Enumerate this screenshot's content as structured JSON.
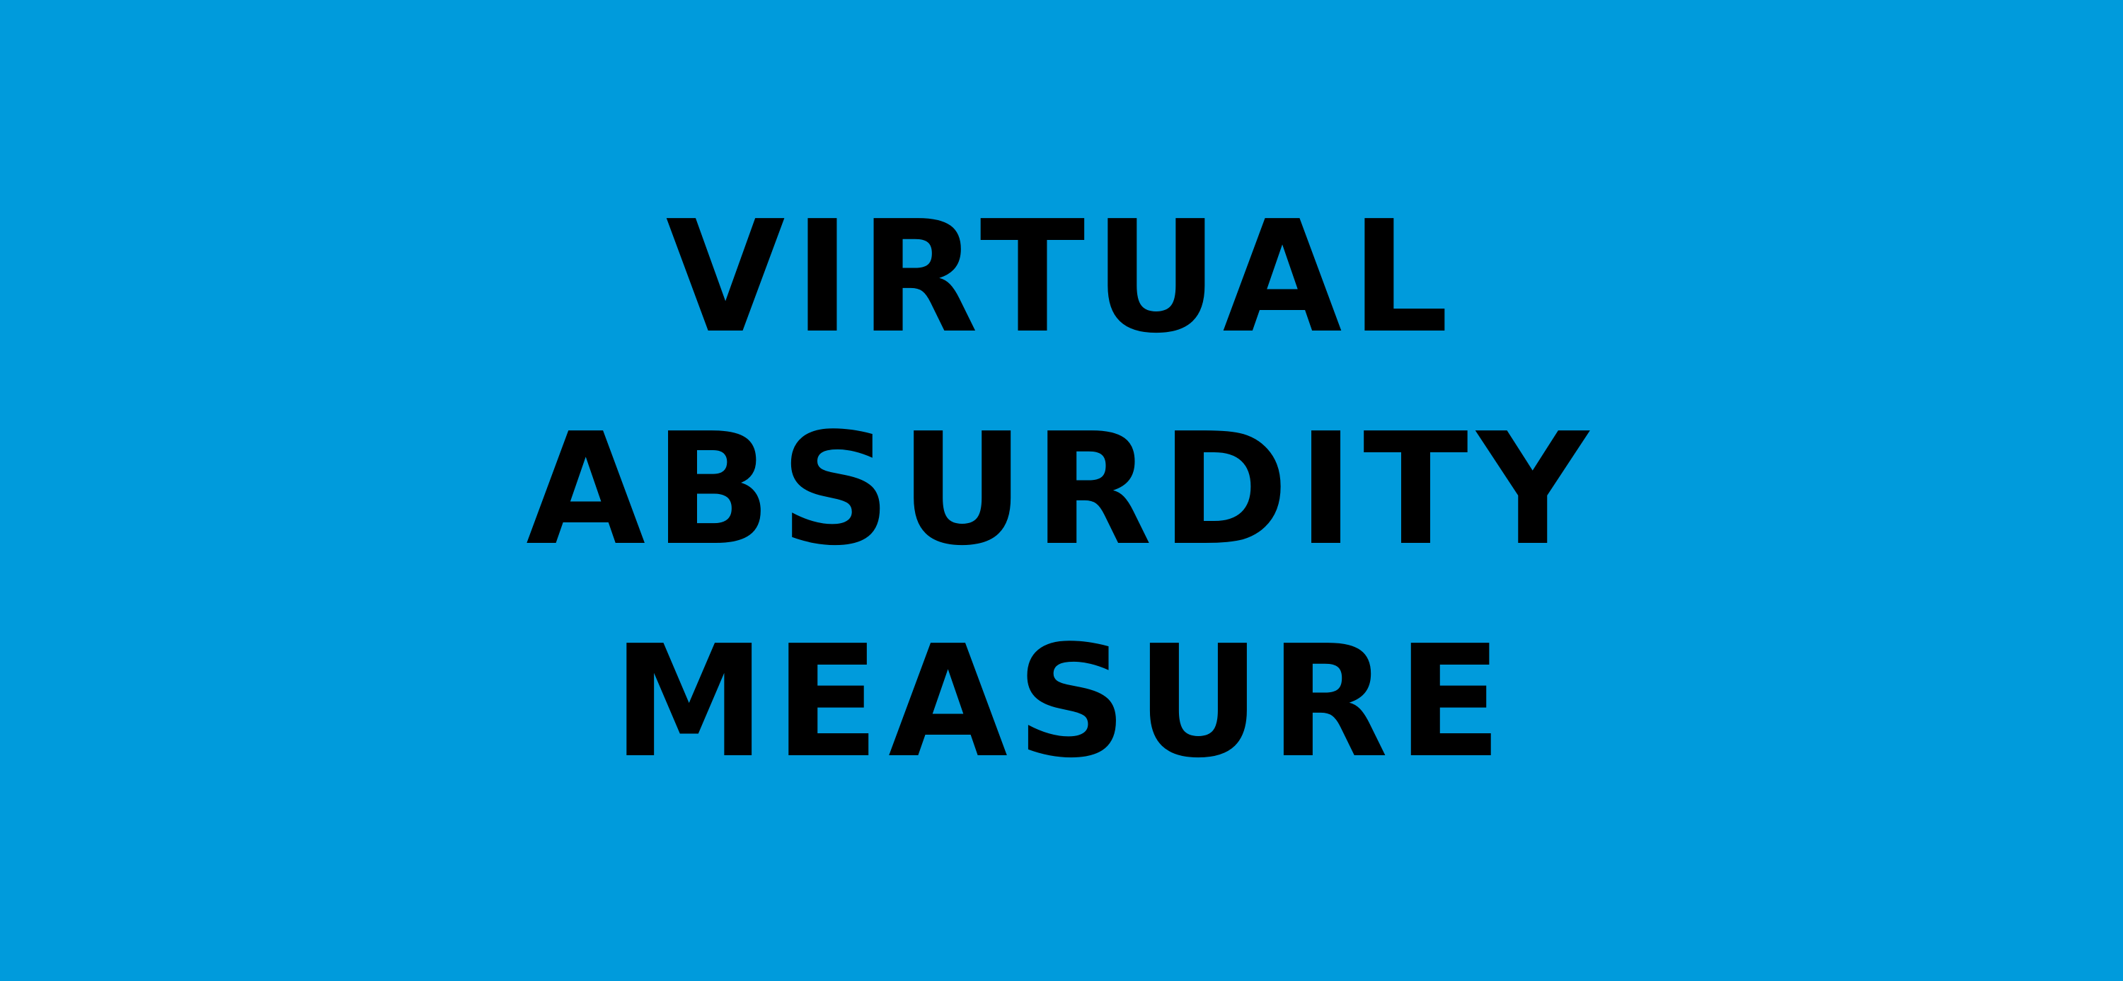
{
  "lines": [
    "VIRTUAL",
    "ABSURDITY",
    "MEASURE"
  ],
  "colors": {
    "background": "#009BDC",
    "text": "#000000"
  }
}
